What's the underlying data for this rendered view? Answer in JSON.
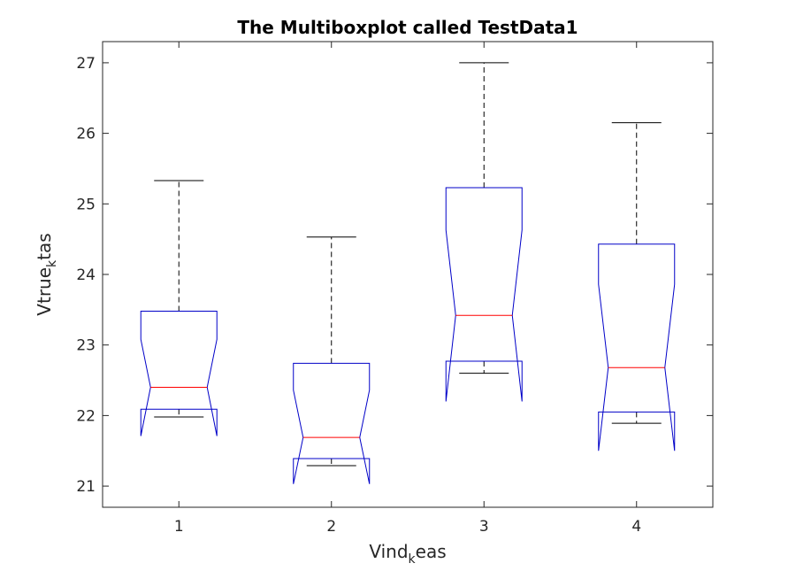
{
  "chart_data": {
    "type": "boxplot",
    "title": "The Multiboxplot called TestData1",
    "xlabel": {
      "base": "Vind",
      "sub": "k",
      "rest": "eas"
    },
    "ylabel": {
      "base": "Vtrue",
      "sub": "k",
      "rest": "tas"
    },
    "categories": [
      "1",
      "2",
      "3",
      "4"
    ],
    "ylim": [
      20.7,
      27.3
    ],
    "yticks": [
      21,
      22,
      23,
      24,
      25,
      26,
      27
    ],
    "notched": true,
    "colors": {
      "box": "#0000c8",
      "median": "#ff0000",
      "whisker": "#000000",
      "axes": "#262626"
    },
    "boxes": [
      {
        "whisker_low": 21.98,
        "q1": 22.09,
        "median": 22.4,
        "q3": 23.48,
        "whisker_high": 25.33,
        "notch_low": 21.71,
        "notch_high": 23.08
      },
      {
        "whisker_low": 21.29,
        "q1": 21.39,
        "median": 21.69,
        "q3": 22.74,
        "whisker_high": 24.53,
        "notch_low": 21.03,
        "notch_high": 22.36
      },
      {
        "whisker_low": 22.6,
        "q1": 22.77,
        "median": 23.42,
        "q3": 25.23,
        "whisker_high": 27.0,
        "notch_low": 22.2,
        "notch_high": 24.63
      },
      {
        "whisker_low": 21.89,
        "q1": 22.05,
        "median": 22.68,
        "q3": 24.43,
        "whisker_high": 26.15,
        "notch_low": 21.5,
        "notch_high": 23.86
      }
    ]
  }
}
